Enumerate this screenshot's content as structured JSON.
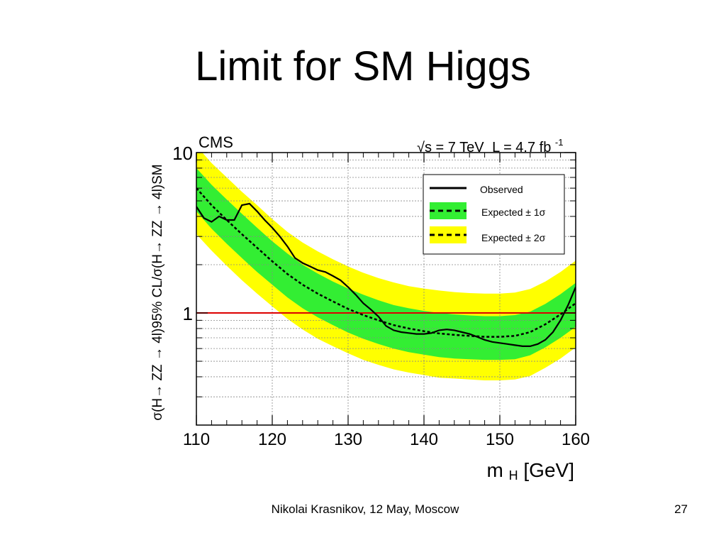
{
  "slide": {
    "title": "Limit for SM Higgs",
    "footer": "Nikolai Krasnikov, 12 May, Moscow",
    "page_number": "27"
  },
  "chart_data": {
    "type": "line",
    "experiment_label": "CMS",
    "energy_label": "√s = 7 TeV",
    "lumi_label": "L = 4.7 fb",
    "lumi_exp": "-1",
    "xlabel": "m",
    "xlabel_sub": "H",
    "xlabel_unit": " [GeV]",
    "ylabel": "σ(H→ ZZ → 4l)95% CL/σ(H→ ZZ → 4l)SM",
    "y_scale": "log",
    "xlim": [
      110,
      160
    ],
    "ylim": [
      0.2,
      10
    ],
    "x_ticks": [
      110,
      120,
      130,
      140,
      150,
      160
    ],
    "y_tick_labels": [
      {
        "value": 1,
        "label": "1"
      },
      {
        "value": 10,
        "label": "10"
      }
    ],
    "grid": true,
    "legend_position": "top-right",
    "colors": {
      "band_2sigma": "#ffff00",
      "band_1sigma": "#33ee33",
      "sm_line": "#dd0000",
      "observed": "#000000",
      "expected": "#000000"
    },
    "reference_line": {
      "y": 1,
      "color": "#dd0000"
    },
    "legend": [
      {
        "label": "Observed",
        "style": "observed"
      },
      {
        "label": "Expected ± 1σ",
        "style": "expected_1sigma"
      },
      {
        "label": "Expected ± 2σ",
        "style": "expected_2sigma"
      }
    ],
    "x": [
      110,
      112,
      114,
      116,
      118,
      120,
      122,
      124,
      126,
      128,
      130,
      132,
      134,
      136,
      138,
      140,
      142,
      144,
      146,
      148,
      150,
      152,
      154,
      156,
      158,
      160
    ],
    "expected": [
      6.0,
      4.7,
      3.8,
      3.1,
      2.55,
      2.1,
      1.75,
      1.5,
      1.32,
      1.18,
      1.06,
      0.97,
      0.9,
      0.84,
      0.8,
      0.77,
      0.745,
      0.73,
      0.72,
      0.71,
      0.71,
      0.72,
      0.76,
      0.85,
      0.98,
      1.15
    ],
    "band_1sigma_low": [
      4.3,
      3.35,
      2.7,
      2.2,
      1.8,
      1.5,
      1.25,
      1.07,
      0.94,
      0.84,
      0.755,
      0.69,
      0.64,
      0.6,
      0.57,
      0.55,
      0.53,
      0.52,
      0.515,
      0.51,
      0.51,
      0.515,
      0.545,
      0.61,
      0.7,
      0.82
    ],
    "band_1sigma_high": [
      8.0,
      6.3,
      5.1,
      4.15,
      3.4,
      2.8,
      2.35,
      2.0,
      1.76,
      1.57,
      1.42,
      1.3,
      1.2,
      1.12,
      1.07,
      1.03,
      1.0,
      0.98,
      0.965,
      0.955,
      0.955,
      0.97,
      1.02,
      1.14,
      1.31,
      1.54
    ],
    "band_2sigma_low": [
      3.1,
      2.45,
      1.97,
      1.6,
      1.32,
      1.1,
      0.92,
      0.79,
      0.69,
      0.62,
      0.56,
      0.51,
      0.475,
      0.445,
      0.425,
      0.41,
      0.395,
      0.39,
      0.385,
      0.38,
      0.38,
      0.385,
      0.405,
      0.455,
      0.52,
      0.61
    ],
    "band_2sigma_high": [
      11.0,
      8.6,
      7.0,
      5.7,
      4.7,
      3.85,
      3.2,
      2.75,
      2.42,
      2.16,
      1.95,
      1.78,
      1.65,
      1.55,
      1.47,
      1.42,
      1.38,
      1.35,
      1.33,
      1.32,
      1.32,
      1.34,
      1.41,
      1.57,
      1.8,
      2.12
    ],
    "observed_x": [
      110,
      111,
      112,
      113,
      114,
      115,
      116,
      117,
      118,
      119,
      120,
      121,
      122,
      123,
      124,
      125,
      126,
      127,
      128,
      129,
      130,
      131,
      132,
      133,
      134,
      135,
      136,
      137,
      138,
      139,
      140,
      141,
      142,
      143,
      144,
      145,
      146,
      147,
      148,
      149,
      150,
      151,
      152,
      153,
      154,
      155,
      156,
      157,
      158,
      159,
      160
    ],
    "observed": [
      4.6,
      3.9,
      3.7,
      4.0,
      3.8,
      3.8,
      4.7,
      4.8,
      4.3,
      3.8,
      3.4,
      3.0,
      2.6,
      2.2,
      2.05,
      1.95,
      1.85,
      1.8,
      1.7,
      1.6,
      1.45,
      1.3,
      1.15,
      1.05,
      0.95,
      0.83,
      0.78,
      0.76,
      0.75,
      0.74,
      0.74,
      0.75,
      0.78,
      0.79,
      0.78,
      0.76,
      0.74,
      0.71,
      0.68,
      0.66,
      0.65,
      0.64,
      0.63,
      0.62,
      0.62,
      0.64,
      0.68,
      0.76,
      0.9,
      1.12,
      1.45
    ]
  }
}
